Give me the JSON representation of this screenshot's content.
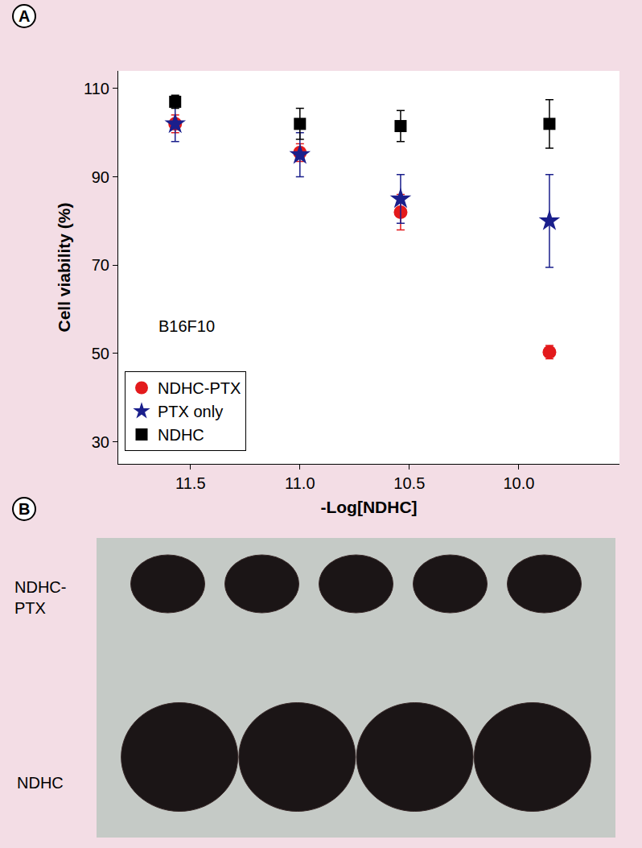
{
  "chart_data": {
    "type": "scatter",
    "panel_label": "A",
    "x_label": "-Log[NDHC]",
    "y_label": "Cell viability (%)",
    "annotations": [
      "B16F10"
    ],
    "x": [
      11.57,
      11.0,
      10.54,
      9.86
    ],
    "series": [
      {
        "name": "NDHC-PTX",
        "color": "#e31a1c",
        "marker": "circle",
        "values": [
          102,
          95.5,
          82,
          50.3
        ],
        "errors": [
          2,
          2,
          4,
          1.5
        ]
      },
      {
        "name": "PTX only",
        "color": "#1a1f8c",
        "marker": "star",
        "values": [
          102,
          95,
          85,
          80
        ],
        "errors": [
          4,
          5,
          5.5,
          10.5
        ]
      },
      {
        "name": "NDHC",
        "color": "#000000",
        "marker": "square",
        "values": [
          107,
          102,
          101.5,
          102
        ],
        "errors": [
          1.5,
          3.5,
          3.5,
          5.5
        ]
      }
    ],
    "xlim": [
      11.83,
      9.54
    ],
    "xticks": [
      11.5,
      {
        "value": 11.0,
        "label": "11.0"
      },
      10.5,
      {
        "value": 10.0,
        "label": "10.0"
      }
    ],
    "ylim": [
      25,
      114
    ],
    "yticks": [
      30,
      50,
      70,
      90,
      110
    ],
    "grid": false,
    "legend": "lower left"
  },
  "photo": {
    "panel_label": "B",
    "rows": [
      {
        "label": "NDHC-\nPTX",
        "count": 5
      },
      {
        "label": "NDHC",
        "count": 4
      }
    ]
  }
}
